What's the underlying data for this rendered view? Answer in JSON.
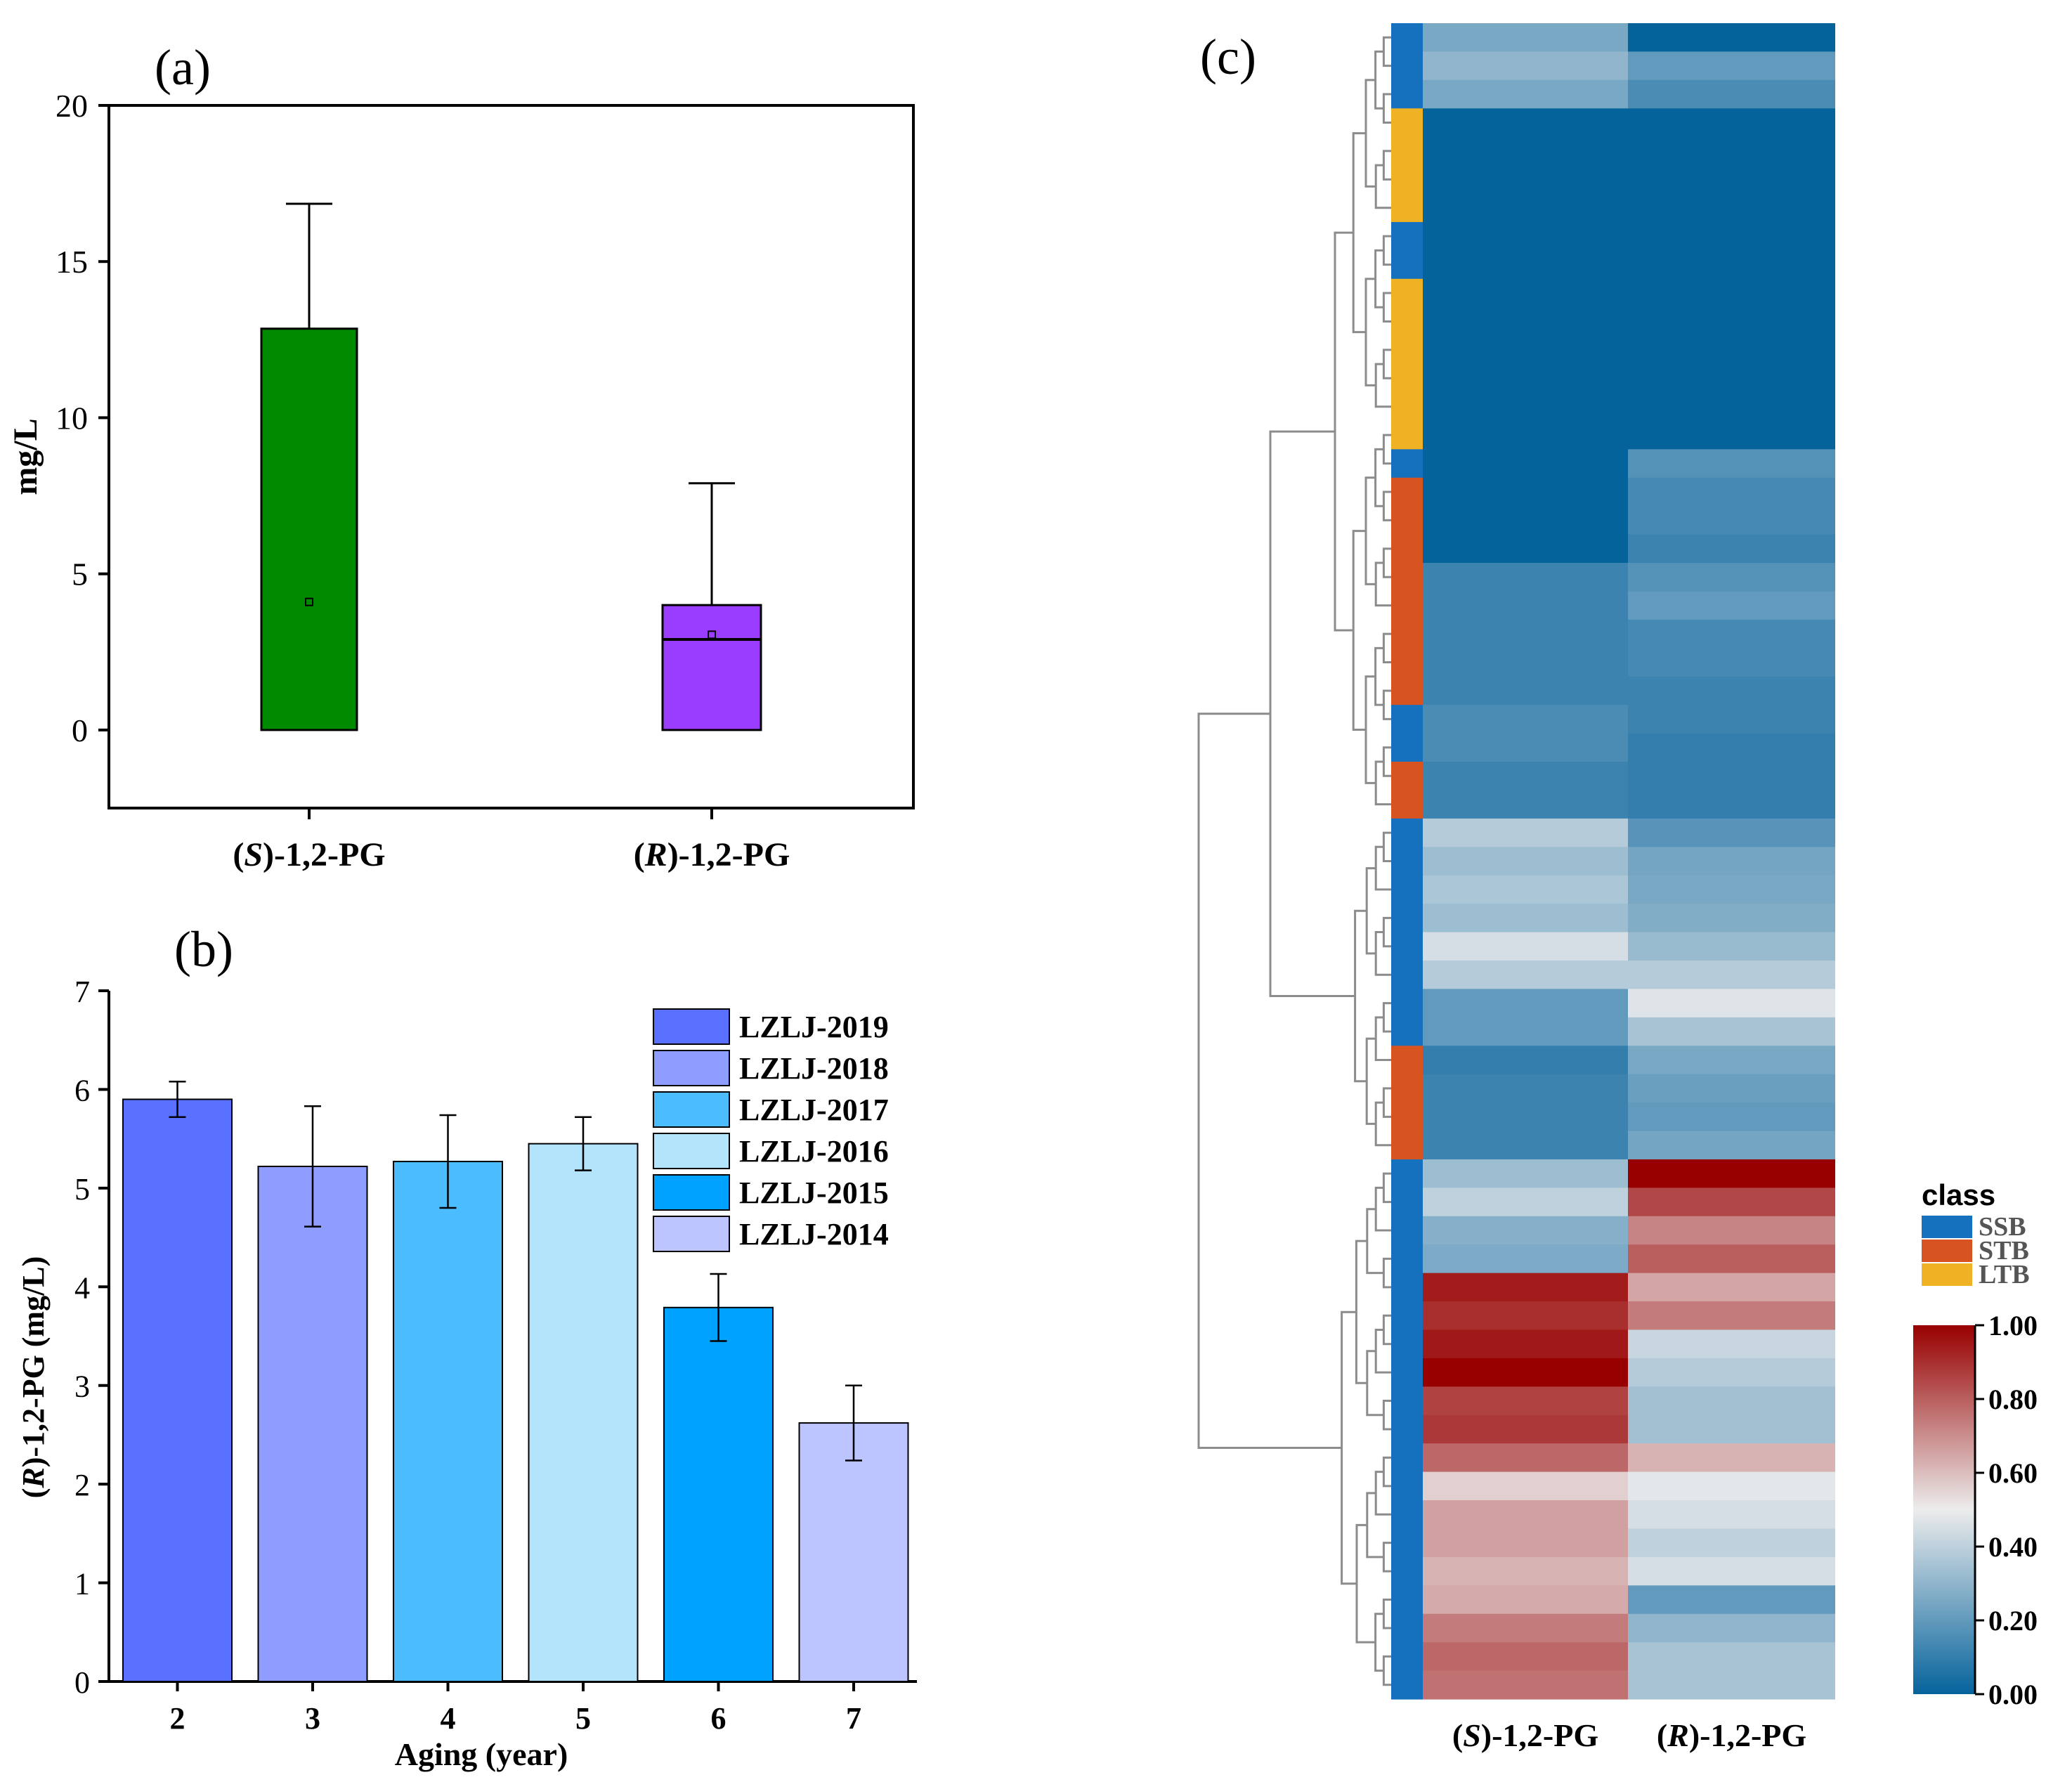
{
  "colors": {
    "box_s": "#008a00",
    "box_r": "#9b3dff",
    "bars": [
      "#5a71ff",
      "#8e9dff",
      "#4bbdff",
      "#b3e4fb",
      "#00a2ff",
      "#bcc5ff"
    ],
    "class_ssb": "#1570be",
    "class_stb": "#d75420",
    "class_ltb": "#efb224",
    "cmap_low": "#05639c",
    "cmap_mid": "#ececec",
    "cmap_high": "#980000"
  },
  "chart_data": [
    {
      "type": "box",
      "panel_label": "(a)",
      "ylabel": "mg/L",
      "ylim": [
        -2.5,
        20
      ],
      "yticks": [
        "0",
        "5",
        "10",
        "15",
        "20"
      ],
      "categories": [
        {
          "prefix": "(",
          "italic": "S",
          "suffix": ")-1,2-PG"
        },
        {
          "prefix": "(",
          "italic": "R",
          "suffix": ")-1,2-PG"
        }
      ],
      "boxes": [
        {
          "q1": 0,
          "median": 0,
          "q3": 12.85,
          "whisker_high": 16.85,
          "mean": 4.1
        },
        {
          "q1": 0,
          "median": 2.9,
          "q3": 4.0,
          "whisker_high": 7.9,
          "mean": 3.05
        }
      ]
    },
    {
      "type": "bar",
      "panel_label": "(b)",
      "xlabel": "Aging  (year)",
      "ylabel": "(R)-1,2-PG (mg/L)",
      "ylabel_parts": {
        "prefix": "(",
        "italic": "R",
        "suffix": ")-1,2-PG (mg/L)"
      },
      "ylim": [
        0,
        7
      ],
      "yticks": [
        "0",
        "1",
        "2",
        "3",
        "4",
        "5",
        "6",
        "7"
      ],
      "categories": [
        "2",
        "3",
        "4",
        "5",
        "6",
        "7"
      ],
      "values": [
        5.9,
        5.22,
        5.27,
        5.45,
        3.79,
        2.62
      ],
      "errors": [
        0.18,
        0.61,
        0.47,
        0.27,
        0.34,
        0.38
      ],
      "legend": [
        "LZLJ-2019",
        "LZLJ-2018",
        "LZLJ-2017",
        "LZLJ-2016",
        "LZLJ-2015",
        "LZLJ-2014"
      ]
    },
    {
      "type": "heatmap",
      "panel_label": "(c)",
      "columns": [
        {
          "prefix": "(",
          "italic": "S",
          "suffix": ")-1,2-PG"
        },
        {
          "prefix": "(",
          "italic": "R",
          "suffix": ")-1,2-PG"
        }
      ],
      "class_title": "class",
      "class_legend": [
        "SSB",
        "STB",
        "LTB"
      ],
      "colorbar_ticks": [
        "0.00",
        "0.20",
        "0.40",
        "0.60",
        "0.80",
        "1.00"
      ],
      "colorbar_range": [
        0,
        1
      ],
      "rows": [
        {
          "class": "SSB",
          "s": 0.25,
          "r": 0.0
        },
        {
          "class": "SSB",
          "s": 0.3,
          "r": 0.2
        },
        {
          "class": "SSB",
          "s": 0.25,
          "r": 0.15
        },
        {
          "class": "LTB",
          "s": 0.0,
          "r": 0.0
        },
        {
          "class": "LTB",
          "s": 0.0,
          "r": 0.0
        },
        {
          "class": "LTB",
          "s": 0.0,
          "r": 0.0
        },
        {
          "class": "LTB",
          "s": 0.0,
          "r": 0.0
        },
        {
          "class": "SSB",
          "s": 0.0,
          "r": 0.0
        },
        {
          "class": "SSB",
          "s": 0.0,
          "r": 0.0
        },
        {
          "class": "LTB",
          "s": 0.0,
          "r": 0.0
        },
        {
          "class": "LTB",
          "s": 0.0,
          "r": 0.0
        },
        {
          "class": "LTB",
          "s": 0.0,
          "r": 0.0
        },
        {
          "class": "LTB",
          "s": 0.0,
          "r": 0.0
        },
        {
          "class": "LTB",
          "s": 0.0,
          "r": 0.0
        },
        {
          "class": "LTB",
          "s": 0.0,
          "r": 0.0
        },
        {
          "class": "SSB",
          "s": 0.0,
          "r": 0.17
        },
        {
          "class": "STB",
          "s": 0.0,
          "r": 0.14
        },
        {
          "class": "STB",
          "s": 0.0,
          "r": 0.14
        },
        {
          "class": "STB",
          "s": 0.0,
          "r": 0.12
        },
        {
          "class": "STB",
          "s": 0.12,
          "r": 0.17
        },
        {
          "class": "STB",
          "s": 0.12,
          "r": 0.2
        },
        {
          "class": "STB",
          "s": 0.12,
          "r": 0.14
        },
        {
          "class": "STB",
          "s": 0.12,
          "r": 0.14
        },
        {
          "class": "STB",
          "s": 0.12,
          "r": 0.12
        },
        {
          "class": "SSB",
          "s": 0.15,
          "r": 0.12
        },
        {
          "class": "SSB",
          "s": 0.15,
          "r": 0.1
        },
        {
          "class": "STB",
          "s": 0.12,
          "r": 0.1
        },
        {
          "class": "STB",
          "s": 0.12,
          "r": 0.1
        },
        {
          "class": "SSB",
          "s": 0.38,
          "r": 0.18
        },
        {
          "class": "SSB",
          "s": 0.33,
          "r": 0.24
        },
        {
          "class": "SSB",
          "s": 0.36,
          "r": 0.25
        },
        {
          "class": "SSB",
          "s": 0.33,
          "r": 0.27
        },
        {
          "class": "SSB",
          "s": 0.45,
          "r": 0.32
        },
        {
          "class": "SSB",
          "s": 0.38,
          "r": 0.38
        },
        {
          "class": "SSB",
          "s": 0.2,
          "r": 0.47
        },
        {
          "class": "SSB",
          "s": 0.2,
          "r": 0.35
        },
        {
          "class": "STB",
          "s": 0.1,
          "r": 0.25
        },
        {
          "class": "STB",
          "s": 0.12,
          "r": 0.22
        },
        {
          "class": "STB",
          "s": 0.12,
          "r": 0.2
        },
        {
          "class": "STB",
          "s": 0.12,
          "r": 0.24
        },
        {
          "class": "SSB",
          "s": 0.33,
          "r": 1.0
        },
        {
          "class": "SSB",
          "s": 0.4,
          "r": 0.85
        },
        {
          "class": "SSB",
          "s": 0.28,
          "r": 0.72
        },
        {
          "class": "SSB",
          "s": 0.26,
          "r": 0.8
        },
        {
          "class": "SSB",
          "s": 0.94,
          "r": 0.65
        },
        {
          "class": "SSB",
          "s": 0.9,
          "r": 0.74
        },
        {
          "class": "SSB",
          "s": 0.95,
          "r": 0.42
        },
        {
          "class": "SSB",
          "s": 1.0,
          "r": 0.38
        },
        {
          "class": "SSB",
          "s": 0.86,
          "r": 0.34
        },
        {
          "class": "SSB",
          "s": 0.88,
          "r": 0.34
        },
        {
          "class": "SSB",
          "s": 0.78,
          "r": 0.62
        },
        {
          "class": "SSB",
          "s": 0.56,
          "r": 0.48
        },
        {
          "class": "SSB",
          "s": 0.66,
          "r": 0.45
        },
        {
          "class": "SSB",
          "s": 0.66,
          "r": 0.4
        },
        {
          "class": "SSB",
          "s": 0.62,
          "r": 0.45
        },
        {
          "class": "SSB",
          "s": 0.64,
          "r": 0.2
        },
        {
          "class": "SSB",
          "s": 0.74,
          "r": 0.3
        },
        {
          "class": "SSB",
          "s": 0.78,
          "r": 0.35
        },
        {
          "class": "SSB",
          "s": 0.76,
          "r": 0.35
        }
      ]
    }
  ]
}
